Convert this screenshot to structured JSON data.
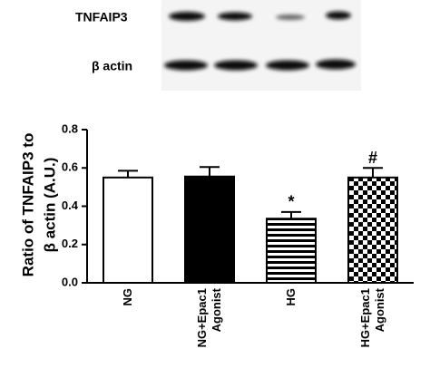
{
  "blot": {
    "labels": [
      "TNFAIP3",
      "β actin"
    ]
  },
  "chart_data": {
    "type": "bar",
    "ylabel": [
      "Ratio of  TNFAIP3  to",
      "β actin (A.U.)"
    ],
    "categories": [
      "NG",
      "NG+Epac1 Agonist",
      "HG",
      "HG+Epac1 Agonist"
    ],
    "values": [
      0.55,
      0.555,
      0.335,
      0.55
    ],
    "errors": [
      0.035,
      0.05,
      0.035,
      0.05
    ],
    "annotations": [
      null,
      null,
      "*",
      "#"
    ],
    "patterns": [
      "open",
      "solid",
      "horizontal-stripes",
      "checkerboard"
    ],
    "color": "#000000",
    "ylim": [
      0,
      0.8
    ],
    "yticks": [
      {
        "value": 0,
        "label": "0.0"
      },
      0.2,
      0.4,
      0.6,
      0.8
    ]
  }
}
